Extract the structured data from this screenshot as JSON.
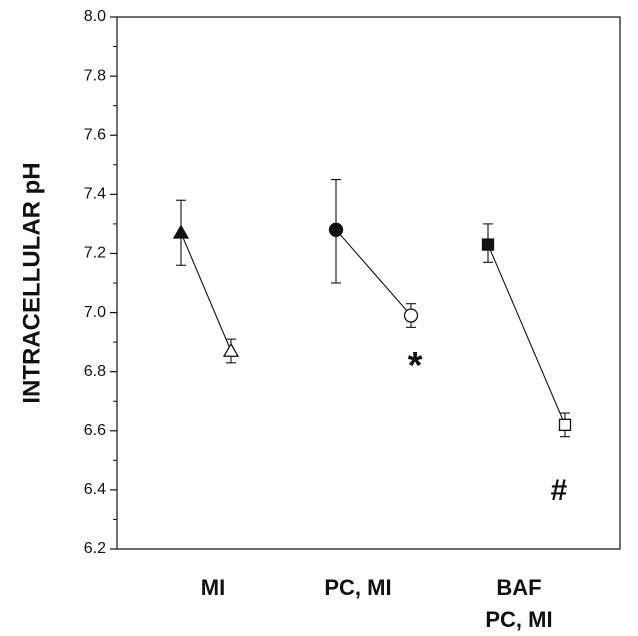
{
  "chart_data": {
    "type": "scatter",
    "title": "",
    "xlabel": "",
    "ylabel": "INTRACELLULAR pH",
    "ylim": [
      6.2,
      8.0
    ],
    "yticks": [
      "6.2",
      "6.4",
      "6.6",
      "6.8",
      "7.0",
      "7.2",
      "7.4",
      "7.6",
      "7.8",
      "8.0"
    ],
    "grid": false,
    "categories": [
      {
        "id": "mi",
        "lines": [
          "MI"
        ]
      },
      {
        "id": "pc-mi",
        "lines": [
          "PC, MI"
        ]
      },
      {
        "id": "baf-pc-mi",
        "lines": [
          "BAF",
          "PC, MI"
        ]
      }
    ],
    "groups": [
      {
        "category": "MI",
        "marker": "triangle",
        "points": [
          {
            "state": "filled",
            "y": 7.27,
            "err_low": 7.16,
            "err_high": 7.38
          },
          {
            "state": "open",
            "y": 6.87,
            "err_low": 6.83,
            "err_high": 6.91
          }
        ],
        "annotation": ""
      },
      {
        "category": "PC, MI",
        "marker": "circle",
        "points": [
          {
            "state": "filled",
            "y": 7.28,
            "err_low": 7.1,
            "err_high": 7.45
          },
          {
            "state": "open",
            "y": 6.99,
            "err_low": 6.95,
            "err_high": 7.03
          }
        ],
        "annotation": "*"
      },
      {
        "category": "BAF PC, MI",
        "marker": "square",
        "points": [
          {
            "state": "filled",
            "y": 7.23,
            "err_low": 7.17,
            "err_high": 7.3
          },
          {
            "state": "open",
            "y": 6.62,
            "err_low": 6.58,
            "err_high": 6.66
          }
        ],
        "annotation": "#"
      }
    ]
  }
}
